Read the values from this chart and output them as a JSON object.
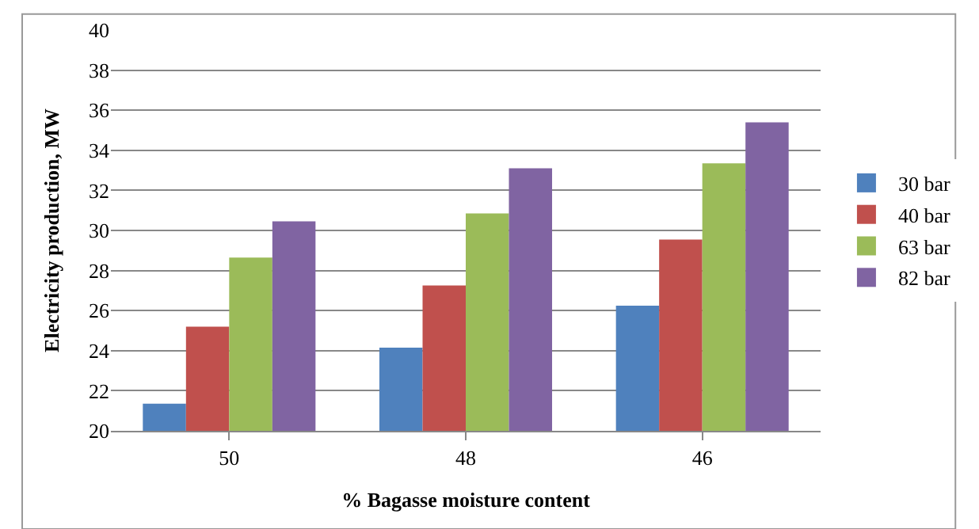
{
  "chart_data": {
    "type": "bar",
    "xlabel": "% Bagasse moisture content",
    "ylabel": "Electricity production, MW",
    "categories": [
      "50",
      "48",
      "46"
    ],
    "series": [
      {
        "name": "30 bar",
        "color": "#4f81bd",
        "values": [
          21.35,
          24.15,
          26.25
        ]
      },
      {
        "name": "40 bar",
        "color": "#c0504d",
        "values": [
          25.2,
          27.25,
          29.55
        ]
      },
      {
        "name": "63 bar",
        "color": "#9bbb59",
        "values": [
          28.65,
          30.85,
          33.35
        ]
      },
      {
        "name": "82 bar",
        "color": "#8064a2",
        "values": [
          30.45,
          33.1,
          35.4
        ]
      }
    ],
    "ylim": [
      20,
      40
    ],
    "yticks": [
      20,
      22,
      24,
      26,
      28,
      30,
      32,
      34,
      36,
      38,
      40
    ],
    "grid": "y",
    "legend": "right"
  }
}
